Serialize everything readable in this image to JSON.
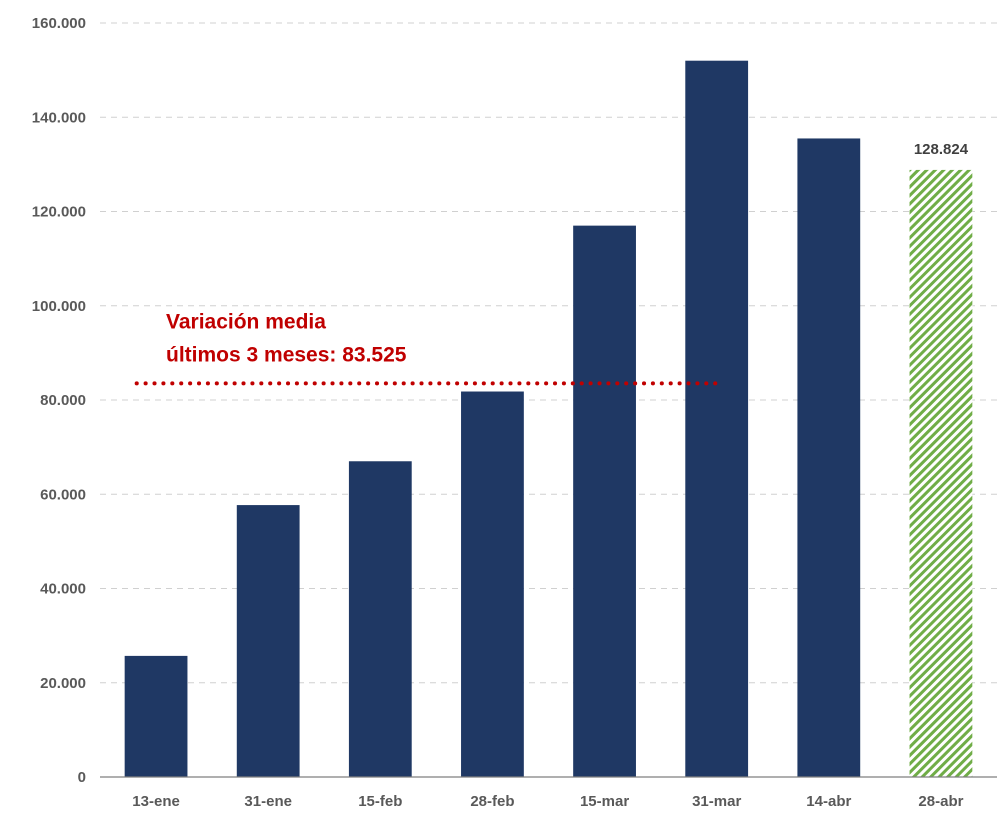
{
  "chart_data": {
    "type": "bar",
    "categories": [
      "13-ene",
      "31-ene",
      "15-feb",
      "28-feb",
      "15-mar",
      "31-mar",
      "14-abr",
      "28-abr"
    ],
    "values": [
      25700,
      57700,
      67000,
      81800,
      117000,
      152000,
      135500,
      128824
    ],
    "highlighted_last_bar": {
      "category": "28-abr",
      "label": "128.824",
      "fill": "hatched-green"
    },
    "ylim": [
      0,
      160000
    ],
    "yticks": [
      0,
      20000,
      40000,
      60000,
      80000,
      100000,
      120000,
      140000,
      160000
    ],
    "ytick_labels": [
      "0",
      "20.000",
      "40.000",
      "60.000",
      "80.000",
      "100.000",
      "120.000",
      "140.000",
      "160.000"
    ],
    "grid": true,
    "reference_line": {
      "value": 83525,
      "from_category": "13-ene",
      "to_category": "31-mar",
      "style": "dotted",
      "label_line1": "Variación media",
      "label_line2": "últimos 3 meses: 83.525"
    },
    "colors": {
      "bar": "#1f3864",
      "highlight_stripe": "#70ad47",
      "reference": "#c00000"
    }
  }
}
